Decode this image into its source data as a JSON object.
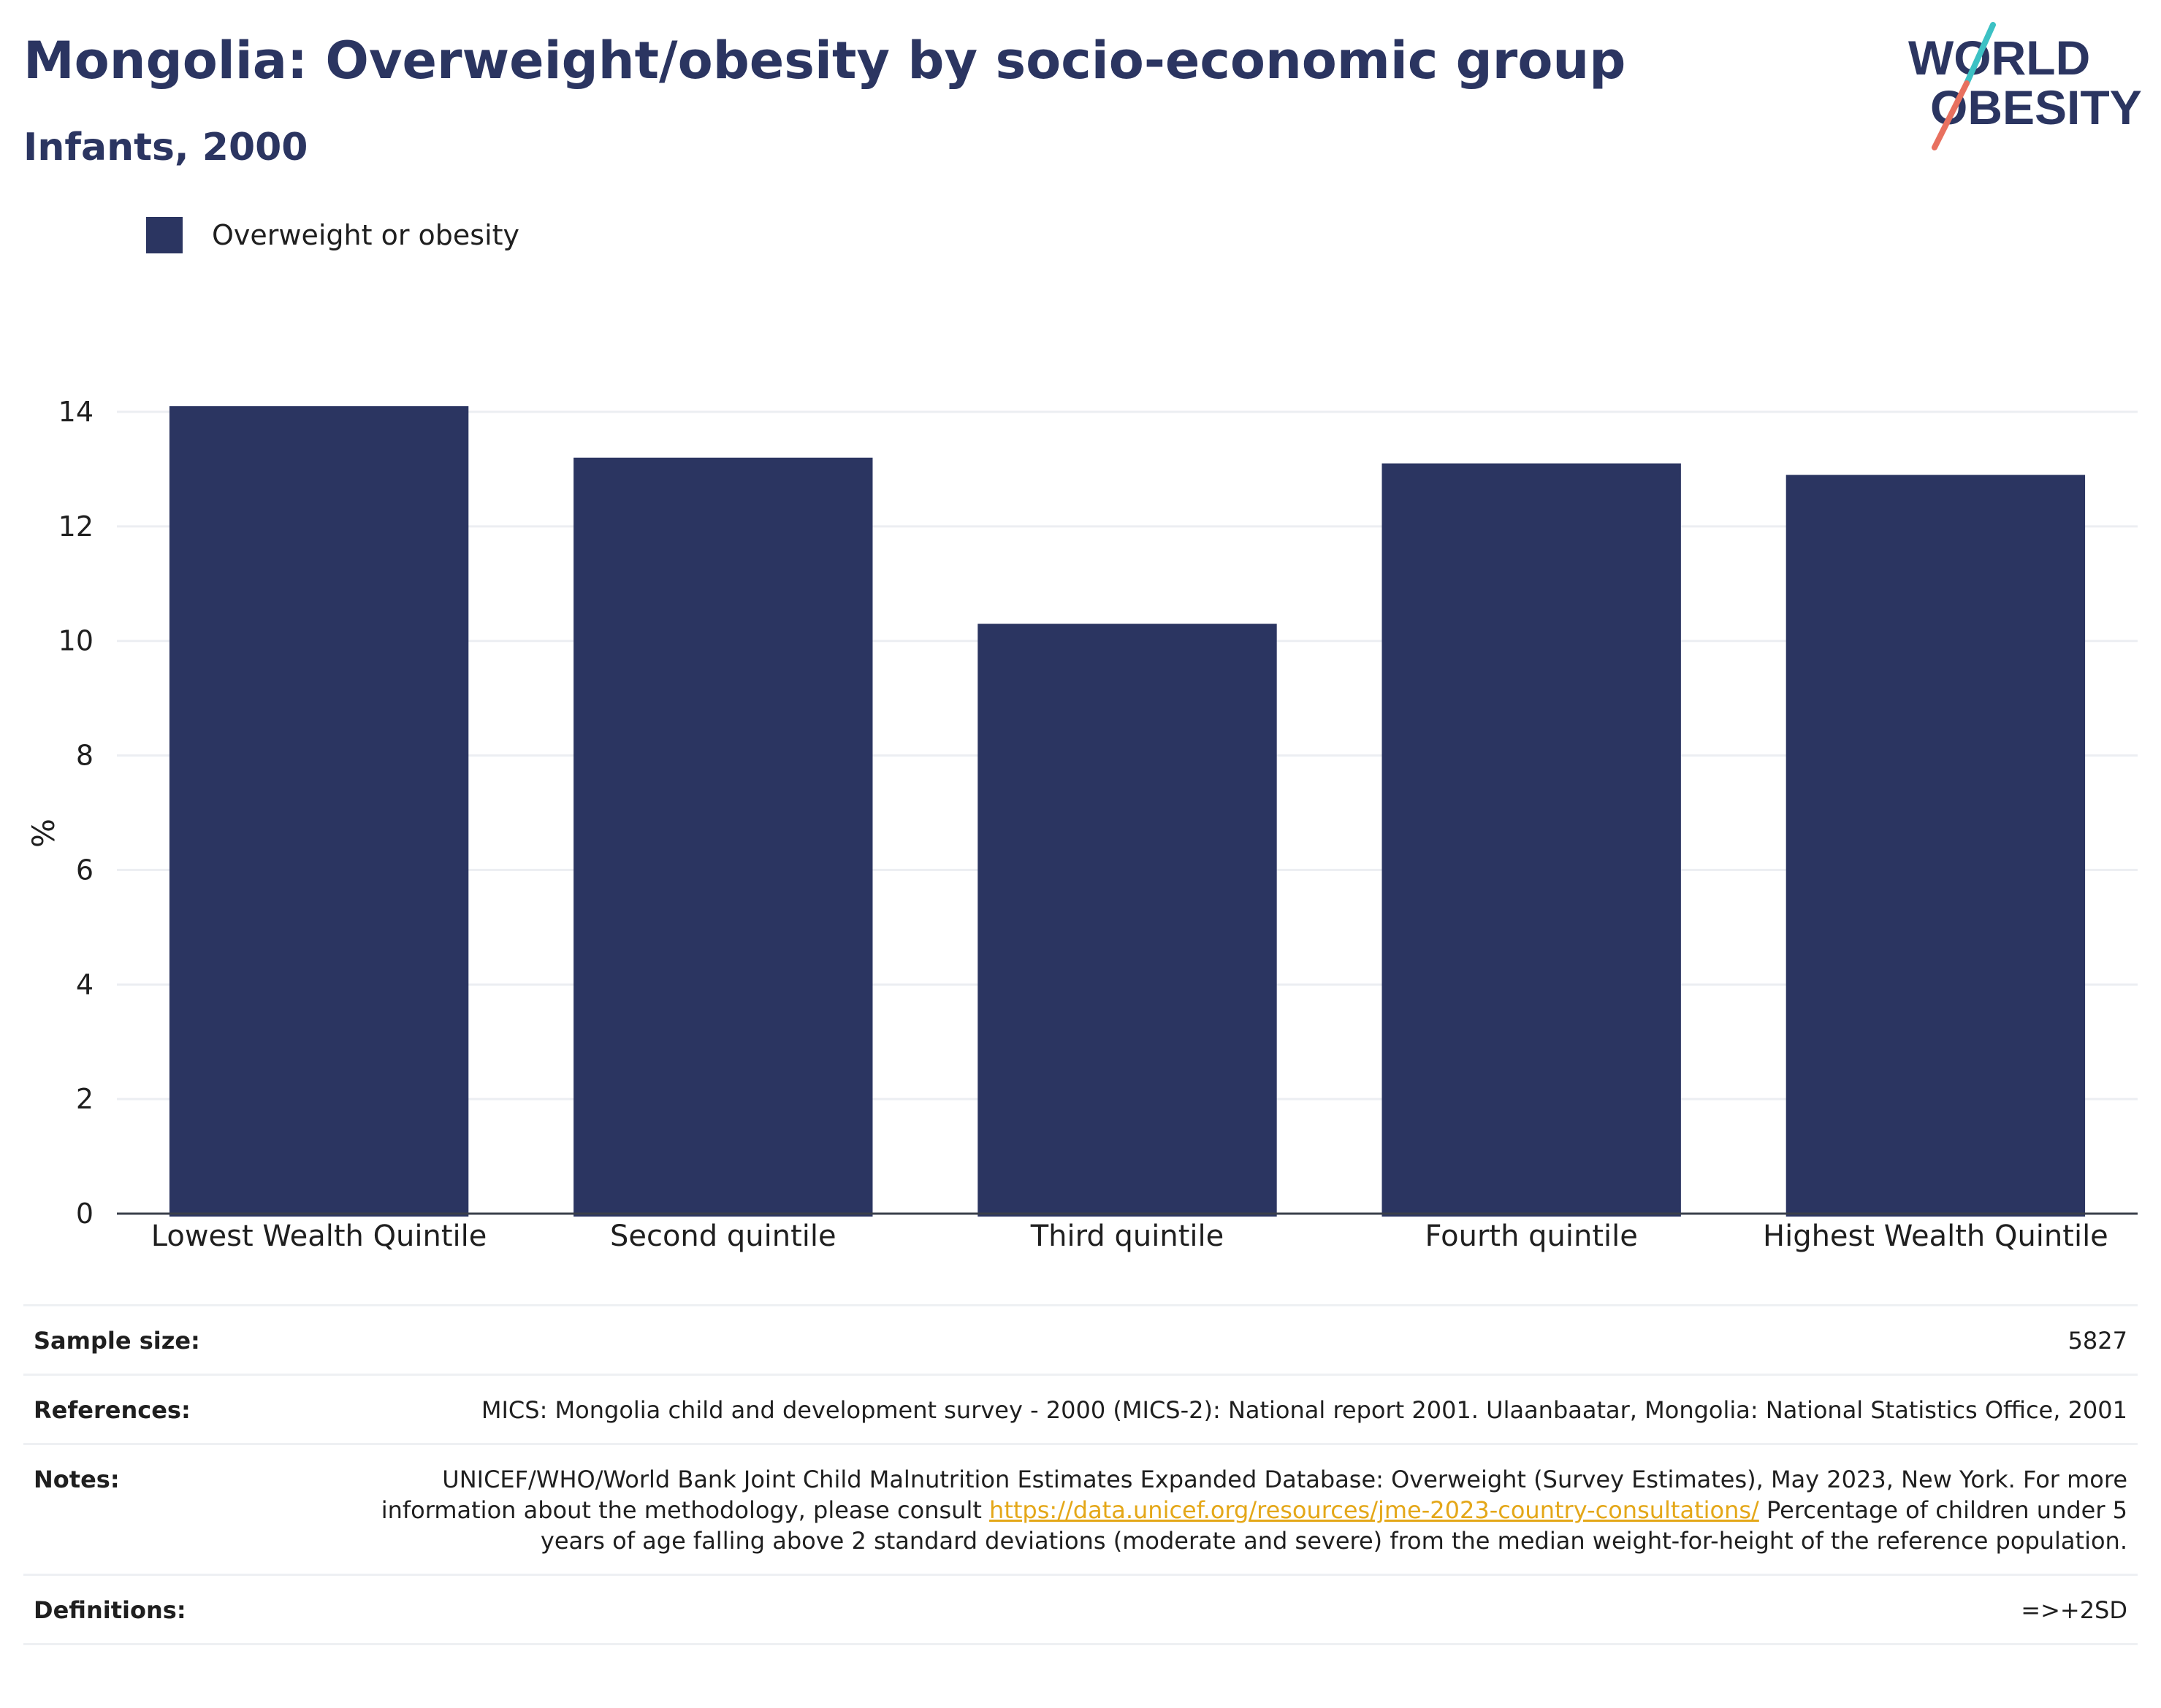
{
  "header": {
    "title": "Mongolia: Overweight/obesity by socio-economic group",
    "subtitle": "Infants, 2000",
    "logo_line1": "WORLD",
    "logo_line2": "OBESITY"
  },
  "colors": {
    "bar": "#2b3561",
    "title": "#2b3561",
    "grid": "#eceef2",
    "link": "#e4a718",
    "logo_teal": "#3cc1c4",
    "logo_coral": "#e8705f"
  },
  "chart_data": {
    "type": "bar",
    "categories": [
      "Lowest Wealth Quintile",
      "Second quintile",
      "Third quintile",
      "Fourth quintile",
      "Highest Wealth Quintile"
    ],
    "series": [
      {
        "name": "Overweight or obesity",
        "values": [
          14.1,
          13.2,
          10.3,
          13.1,
          12.9
        ]
      }
    ],
    "ylabel": "%",
    "ylim": [
      0,
      14.5
    ],
    "yticks": [
      0,
      2,
      4,
      6,
      8,
      10,
      12,
      14
    ],
    "grid": true,
    "legend_position": "top-left"
  },
  "meta": {
    "sample_size_label": "Sample size:",
    "sample_size_value": "5827",
    "references_label": "References:",
    "references_value": "MICS: Mongolia child and development survey - 2000 (MICS-2): National report 2001. Ulaanbaatar, Mongolia: National Statistics Office, 2001",
    "notes_label": "Notes:",
    "notes_text_1": "UNICEF/WHO/World Bank Joint Child Malnutrition Estimates Expanded Database: Overweight (Survey Estimates), May 2023, New York. For more information about the methodology, please consult ",
    "notes_link": "https://data.unicef.org/resources/jme-2023-country-consultations/",
    "notes_text_2": " Percentage of children under 5 years of age falling above 2 standard deviations (moderate and severe) from the median weight-for-height of the reference population.",
    "definitions_label": "Definitions:",
    "definitions_value": "=>+2SD"
  }
}
